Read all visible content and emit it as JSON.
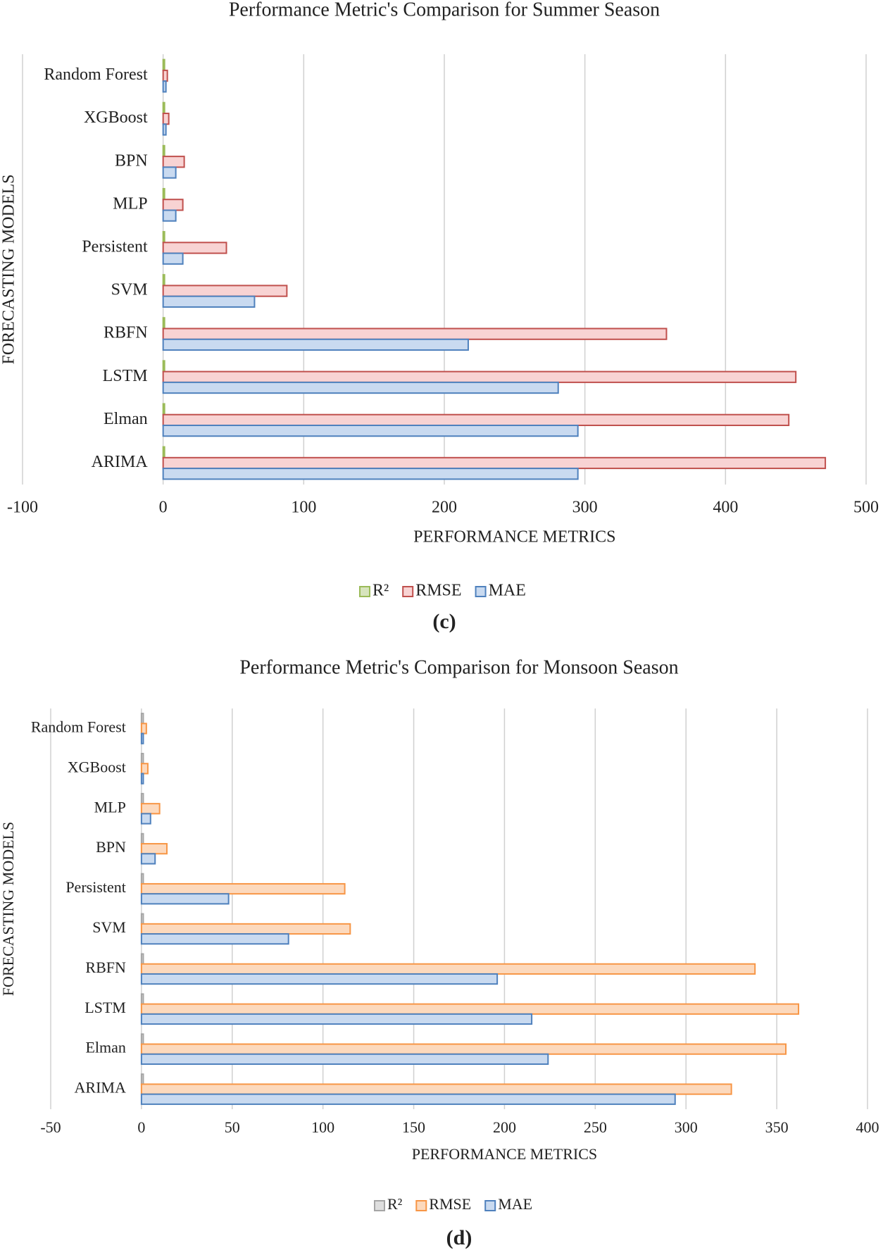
{
  "chart_data": [
    {
      "type": "hbar",
      "title": "Performance Metric's  Comparison for Summer Season",
      "xlabel": "PERFORMANCE METRICS",
      "ylabel": "FORECASTING MODELS",
      "caption": "(c)",
      "categories": [
        "Random Forest",
        "XGBoost",
        "BPN",
        "MLP",
        "Persistent",
        "SVM",
        "RBFN",
        "LSTM",
        "Elman",
        "ARIMA"
      ],
      "series": [
        {
          "name": "R²",
          "color": "#9bbb59",
          "fill": "#d7e4bd",
          "values": [
            1,
            1,
            1,
            1,
            1,
            1,
            1,
            1,
            1,
            1
          ]
        },
        {
          "name": "RMSE",
          "color": "#c0504d",
          "fill": "#f8d3d3",
          "values": [
            3,
            4,
            15,
            14,
            45,
            88,
            358,
            450,
            445,
            471
          ]
        },
        {
          "name": "MAE",
          "color": "#4f81bd",
          "fill": "#c9daf0",
          "values": [
            2,
            2,
            9,
            9,
            14,
            65,
            217,
            281,
            295,
            295
          ]
        }
      ],
      "xlim": [
        -100,
        500
      ],
      "xticks": [
        -100,
        0,
        100,
        200,
        300,
        400,
        500
      ],
      "grid": true
    },
    {
      "type": "hbar",
      "title": "Performance Metric's  Comparison for Monsoon Season",
      "xlabel": "PERFORMANCE METRICS",
      "ylabel": "FORECASTING MODELS",
      "caption": "(d)",
      "categories": [
        "Random Forest",
        "XGBoost",
        "MLP",
        "BPN",
        "Persistent",
        "SVM",
        "RBFN",
        "LSTM",
        "Elman",
        "ARIMA"
      ],
      "series": [
        {
          "name": "R²",
          "color": "#a5a5a5",
          "fill": "#dedede",
          "values": [
            1,
            1,
            1,
            1,
            1,
            1,
            1,
            1,
            1,
            1
          ]
        },
        {
          "name": "RMSE",
          "color": "#f79646",
          "fill": "#fcd9bd",
          "values": [
            2.7,
            3.5,
            10,
            14,
            112,
            115,
            338,
            362,
            355,
            325
          ]
        },
        {
          "name": "MAE",
          "color": "#4f81bd",
          "fill": "#c9daf0",
          "values": [
            1,
            1,
            5,
            7.5,
            48,
            81,
            196,
            215,
            224,
            294
          ]
        }
      ],
      "xlim": [
        -50,
        400
      ],
      "xticks": [
        -50,
        0,
        50,
        100,
        150,
        200,
        250,
        300,
        350,
        400
      ],
      "grid": true
    }
  ]
}
